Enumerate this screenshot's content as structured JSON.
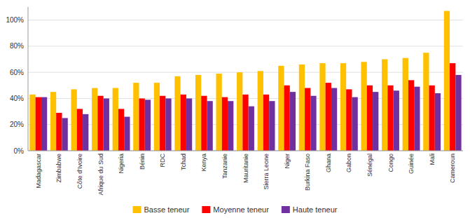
{
  "chart_data": {
    "type": "bar",
    "categories": [
      "Madagascar",
      "Zimbabwe",
      "Côte d'Ivoire",
      "Afrique du Sud",
      "Nigeria",
      "Bénin",
      "RDC",
      "Tchad",
      "Kenya",
      "Tanzanie",
      "Mauritanie",
      "Sierra Leone",
      "Niger",
      "Burkina Faso",
      "Ghana",
      "Gabon",
      "Sénégal",
      "Congo",
      "Guinée",
      "Mali",
      "Cameroun"
    ],
    "series": [
      {
        "name": "Basse teneur",
        "color": "#FFC000",
        "values": [
          43,
          45,
          47,
          48,
          48,
          52,
          52,
          57,
          58,
          59,
          60,
          61,
          65,
          66,
          67,
          67,
          68,
          70,
          71,
          75,
          107
        ]
      },
      {
        "name": "Moyenne teneur",
        "color": "#FF0000",
        "values": [
          41,
          29,
          32,
          42,
          32,
          40,
          42,
          43,
          42,
          41,
          43,
          43,
          50,
          48,
          52,
          47,
          50,
          50,
          54,
          50,
          67
        ]
      },
      {
        "name": "Haute teneur",
        "color": "#7030A0",
        "values": [
          41,
          25,
          28,
          40,
          26,
          39,
          40,
          40,
          38,
          38,
          34,
          38,
          45,
          42,
          48,
          41,
          45,
          46,
          49,
          44,
          58
        ]
      }
    ],
    "ylim": [
      0,
      110
    ],
    "yticks": [
      {
        "value": 0,
        "label": "0%"
      },
      {
        "value": 20,
        "label": "20%"
      },
      {
        "value": 40,
        "label": "40%"
      },
      {
        "value": 60,
        "label": "60%"
      },
      {
        "value": 80,
        "label": "80%"
      },
      {
        "value": 100,
        "label": "100%"
      }
    ],
    "grid": true,
    "legend": "bottom"
  }
}
